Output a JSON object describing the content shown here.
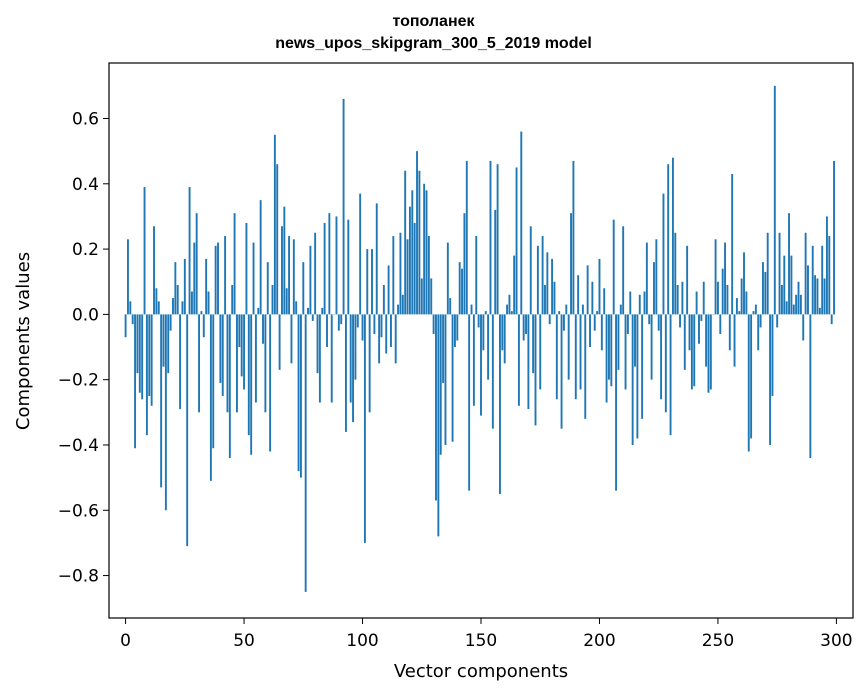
{
  "chart_data": {
    "type": "bar",
    "title_lines": [
      "тополанек",
      "news_upos_skipgram_300_5_2019 model"
    ],
    "xlabel": "Vector components",
    "ylabel": "Components values",
    "xlim": [
      -7,
      307
    ],
    "ylim": [
      -0.93,
      0.77
    ],
    "xticks": [
      0,
      50,
      100,
      150,
      200,
      250,
      300
    ],
    "xtick_labels": [
      "0",
      "50",
      "100",
      "150",
      "200",
      "250",
      "300"
    ],
    "yticks": [
      -0.8,
      -0.6,
      -0.4,
      -0.2,
      0.0,
      0.2,
      0.4,
      0.6
    ],
    "ytick_labels": [
      "−0.8",
      "−0.6",
      "−0.4",
      "−0.2",
      "0.0",
      "0.2",
      "0.4",
      "0.6"
    ],
    "bar_color": "#1f77b4",
    "series": [
      {
        "name": "components",
        "values": [
          -0.07,
          0.23,
          0.04,
          -0.03,
          -0.41,
          -0.18,
          -0.24,
          -0.26,
          0.39,
          -0.37,
          -0.25,
          -0.28,
          0.27,
          0.08,
          0.04,
          -0.53,
          -0.16,
          -0.6,
          -0.18,
          -0.05,
          0.05,
          0.16,
          0.09,
          -0.29,
          0.04,
          0.17,
          -0.71,
          0.39,
          0.07,
          0.22,
          0.31,
          -0.3,
          0.01,
          -0.07,
          0.17,
          0.07,
          -0.51,
          -0.41,
          0.21,
          0.22,
          -0.21,
          -0.25,
          0.24,
          -0.3,
          -0.44,
          0.09,
          0.31,
          -0.3,
          -0.1,
          -0.19,
          -0.23,
          0.28,
          -0.37,
          -0.43,
          0.22,
          -0.27,
          0.02,
          0.35,
          -0.09,
          -0.3,
          0.16,
          -0.42,
          0.09,
          0.55,
          0.46,
          -0.17,
          0.27,
          0.33,
          0.08,
          0.24,
          -0.15,
          0.23,
          0.04,
          -0.48,
          -0.5,
          0.16,
          -0.85,
          0.02,
          0.21,
          -0.02,
          0.25,
          -0.18,
          -0.27,
          0.02,
          0.28,
          -0.1,
          0.31,
          -0.27,
          0.0,
          0.3,
          -0.05,
          -0.03,
          0.66,
          -0.36,
          0.29,
          -0.27,
          -0.33,
          -0.2,
          -0.04,
          0.37,
          -0.08,
          -0.7,
          0.2,
          -0.3,
          0.2,
          -0.06,
          0.34,
          -0.15,
          -0.07,
          0.09,
          -0.12,
          0.15,
          -0.1,
          0.24,
          -0.15,
          0.03,
          0.25,
          0.06,
          0.44,
          0.23,
          0.33,
          0.38,
          0.28,
          0.5,
          0.44,
          0.11,
          0.4,
          0.38,
          0.24,
          0.11,
          -0.06,
          -0.57,
          -0.68,
          -0.43,
          -0.21,
          -0.4,
          0.22,
          0.05,
          -0.39,
          -0.1,
          -0.08,
          0.16,
          0.14,
          0.31,
          0.47,
          -0.54,
          0.03,
          -0.28,
          0.24,
          -0.04,
          -0.31,
          -0.11,
          0.01,
          -0.2,
          0.47,
          -0.35,
          0.32,
          0.46,
          -0.55,
          -0.11,
          -0.15,
          0.03,
          0.06,
          0.01,
          0.18,
          0.45,
          -0.28,
          0.56,
          -0.08,
          -0.06,
          -0.29,
          0.27,
          -0.18,
          -0.34,
          0.21,
          -0.23,
          0.24,
          0.09,
          0.19,
          -0.03,
          0.17,
          0.1,
          -0.26,
          0.01,
          -0.35,
          -0.05,
          0.03,
          -0.2,
          0.31,
          0.47,
          -0.26,
          0.12,
          -0.23,
          0.03,
          -0.32,
          0.15,
          -0.1,
          0.1,
          -0.05,
          0.01,
          0.17,
          -0.11,
          0.08,
          -0.27,
          -0.2,
          -0.22,
          0.29,
          -0.54,
          -0.17,
          0.03,
          0.27,
          -0.23,
          -0.06,
          0.07,
          -0.4,
          -0.16,
          -0.38,
          0.06,
          -0.32,
          0.07,
          0.22,
          -0.03,
          -0.2,
          0.16,
          0.23,
          -0.05,
          -0.26,
          0.37,
          -0.3,
          0.46,
          -0.37,
          0.48,
          0.25,
          0.09,
          -0.04,
          0.1,
          -0.17,
          0.21,
          -0.11,
          -0.23,
          -0.22,
          0.07,
          -0.09,
          -0.02,
          0.1,
          -0.16,
          -0.24,
          -0.23,
          0.0,
          0.23,
          0.1,
          -0.06,
          0.14,
          0.22,
          0.09,
          -0.11,
          0.43,
          -0.16,
          0.05,
          0.01,
          0.11,
          0.19,
          0.07,
          -0.42,
          -0.38,
          0.01,
          0.03,
          -0.11,
          -0.04,
          0.16,
          0.13,
          0.25,
          -0.4,
          -0.25,
          0.7,
          -0.04,
          0.25,
          0.09,
          0.18,
          0.04,
          0.31,
          0.18,
          0.03,
          0.06,
          0.1,
          0.06,
          -0.08,
          0.25,
          0.15,
          -0.44,
          0.21,
          0.12,
          0.11,
          0.02,
          0.21,
          0.11,
          0.3,
          0.24,
          -0.03,
          0.47
        ]
      }
    ]
  }
}
